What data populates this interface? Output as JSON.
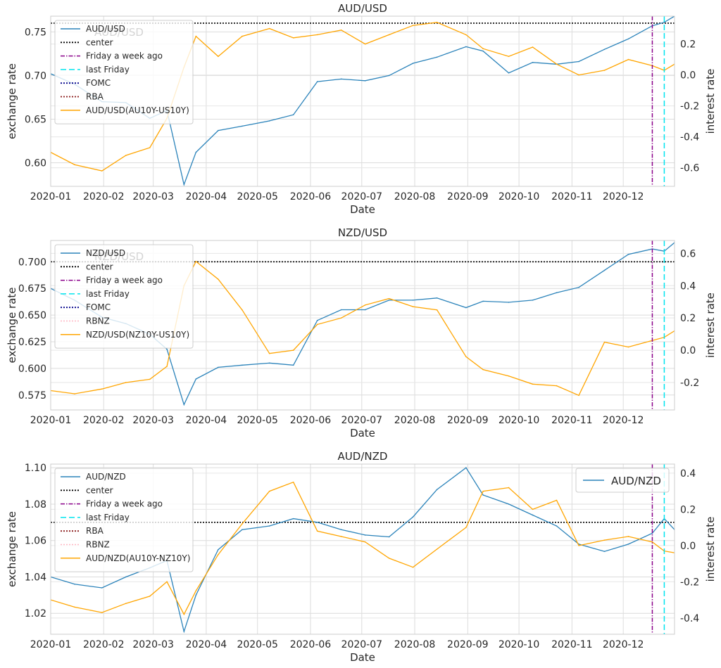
{
  "chart_data": [
    {
      "type": "line",
      "title": "AUD/USD",
      "xlabel": "Date",
      "ylabel": "exchange rate",
      "ylabel_right": "interest rate",
      "x_ticks": [
        "2020-01",
        "2020-02",
        "2020-03",
        "2020-04",
        "2020-05",
        "2020-06",
        "2020-07",
        "2020-08",
        "2020-09",
        "2020-10",
        "2020-11",
        "2020-12"
      ],
      "xlim": [
        "2020-01-01",
        "2020-12-31"
      ],
      "ylim": [
        0.573,
        0.768
      ],
      "yticks": [
        "0.60",
        "0.65",
        "0.70",
        "0.75"
      ],
      "ylim_right": [
        -0.72,
        0.38
      ],
      "yticks_right": [
        "-0.6",
        "-0.4",
        "-0.2",
        "0.0",
        "0.2"
      ],
      "grid": true,
      "legend_position": "upper-left",
      "legend_watermark": "AUD/USD",
      "legend": [
        "AUD/USD",
        "center",
        "Friday a week ago",
        "last Friday",
        "FOMC",
        "RBA",
        "AUD/USD(AU10Y-US10Y)"
      ],
      "center_value": 0.76,
      "friday_week_ago": "2020-12-18",
      "last_friday": "2020-12-25",
      "series": [
        {
          "name": "AUD/USD",
          "axis": "left",
          "color": "#2b83ba",
          "x": [
            "2020-01-01",
            "2020-01-15",
            "2020-01-31",
            "2020-02-14",
            "2020-02-28",
            "2020-03-09",
            "2020-03-19",
            "2020-03-26",
            "2020-04-08",
            "2020-04-22",
            "2020-05-08",
            "2020-05-22",
            "2020-06-05",
            "2020-06-19",
            "2020-07-03",
            "2020-07-17",
            "2020-07-31",
            "2020-08-14",
            "2020-08-31",
            "2020-09-10",
            "2020-09-25",
            "2020-10-09",
            "2020-10-23",
            "2020-11-05",
            "2020-11-20",
            "2020-12-04",
            "2020-12-18",
            "2020-12-25",
            "2020-12-31"
          ],
          "y": [
            0.702,
            0.69,
            0.67,
            0.669,
            0.651,
            0.66,
            0.575,
            0.612,
            0.637,
            0.642,
            0.648,
            0.655,
            0.693,
            0.696,
            0.694,
            0.7,
            0.714,
            0.721,
            0.733,
            0.728,
            0.703,
            0.715,
            0.713,
            0.716,
            0.73,
            0.742,
            0.757,
            0.761,
            0.768
          ]
        },
        {
          "name": "AUD/USD(AU10Y-US10Y)",
          "axis": "right",
          "color": "#ffa500",
          "x": [
            "2020-01-01",
            "2020-01-15",
            "2020-01-31",
            "2020-02-14",
            "2020-02-28",
            "2020-03-09",
            "2020-03-19",
            "2020-03-26",
            "2020-04-08",
            "2020-04-22",
            "2020-05-08",
            "2020-05-22",
            "2020-06-05",
            "2020-06-19",
            "2020-07-03",
            "2020-07-17",
            "2020-07-31",
            "2020-08-14",
            "2020-08-31",
            "2020-09-10",
            "2020-09-25",
            "2020-10-09",
            "2020-10-23",
            "2020-11-05",
            "2020-11-20",
            "2020-12-04",
            "2020-12-18",
            "2020-12-25",
            "2020-12-31"
          ],
          "y": [
            -0.5,
            -0.58,
            -0.62,
            -0.52,
            -0.47,
            -0.28,
            0.05,
            0.25,
            0.12,
            0.25,
            0.3,
            0.24,
            0.26,
            0.29,
            0.2,
            0.26,
            0.32,
            0.34,
            0.26,
            0.17,
            0.12,
            0.18,
            0.07,
            0.0,
            0.03,
            0.1,
            0.06,
            0.03,
            0.07
          ]
        }
      ]
    },
    {
      "type": "line",
      "title": "NZD/USD",
      "xlabel": "Date",
      "ylabel": "exchange rate",
      "ylabel_right": "interest rate",
      "x_ticks": [
        "2020-01",
        "2020-02",
        "2020-03",
        "2020-04",
        "2020-05",
        "2020-06",
        "2020-07",
        "2020-08",
        "2020-09",
        "2020-10",
        "2020-11",
        "2020-12"
      ],
      "xlim": [
        "2020-01-01",
        "2020-12-31"
      ],
      "ylim": [
        0.561,
        0.72
      ],
      "yticks": [
        "0.575",
        "0.600",
        "0.625",
        "0.650",
        "0.675",
        "0.700"
      ],
      "ylim_right": [
        -0.37,
        0.68
      ],
      "yticks_right": [
        "-0.2",
        "0.0",
        "0.2",
        "0.4",
        "0.6"
      ],
      "grid": true,
      "legend_position": "upper-left",
      "legend_watermark": "NZD/USD",
      "legend": [
        "NZD/USD",
        "center",
        "Friday a week ago",
        "last Friday",
        "FOMC",
        "RBNZ",
        "NZD/USD(NZ10Y-US10Y)"
      ],
      "center_value": 0.7,
      "friday_week_ago": "2020-12-18",
      "last_friday": "2020-12-25",
      "series": [
        {
          "name": "NZD/USD",
          "axis": "left",
          "color": "#2b83ba",
          "x": [
            "2020-01-01",
            "2020-01-15",
            "2020-01-31",
            "2020-02-14",
            "2020-02-28",
            "2020-03-09",
            "2020-03-19",
            "2020-03-26",
            "2020-04-08",
            "2020-04-22",
            "2020-05-08",
            "2020-05-22",
            "2020-06-05",
            "2020-06-19",
            "2020-07-03",
            "2020-07-17",
            "2020-07-31",
            "2020-08-14",
            "2020-08-31",
            "2020-09-10",
            "2020-09-25",
            "2020-10-09",
            "2020-10-23",
            "2020-11-05",
            "2020-11-20",
            "2020-12-04",
            "2020-12-18",
            "2020-12-25",
            "2020-12-31"
          ],
          "y": [
            0.675,
            0.664,
            0.648,
            0.642,
            0.632,
            0.618,
            0.566,
            0.59,
            0.601,
            0.603,
            0.605,
            0.603,
            0.645,
            0.655,
            0.655,
            0.664,
            0.664,
            0.666,
            0.657,
            0.663,
            0.662,
            0.664,
            0.671,
            0.676,
            0.692,
            0.707,
            0.712,
            0.71,
            0.718
          ]
        },
        {
          "name": "NZD/USD(NZ10Y-US10Y)",
          "axis": "right",
          "color": "#ffa500",
          "x": [
            "2020-01-01",
            "2020-01-15",
            "2020-01-31",
            "2020-02-14",
            "2020-02-28",
            "2020-03-09",
            "2020-03-19",
            "2020-03-26",
            "2020-04-08",
            "2020-04-22",
            "2020-05-08",
            "2020-05-22",
            "2020-06-05",
            "2020-06-19",
            "2020-07-03",
            "2020-07-17",
            "2020-07-31",
            "2020-08-14",
            "2020-08-31",
            "2020-09-10",
            "2020-09-25",
            "2020-10-09",
            "2020-10-23",
            "2020-11-05",
            "2020-11-20",
            "2020-12-04",
            "2020-12-18",
            "2020-12-25",
            "2020-12-31"
          ],
          "y": [
            -0.25,
            -0.27,
            -0.24,
            -0.2,
            -0.18,
            -0.1,
            0.4,
            0.55,
            0.44,
            0.25,
            -0.02,
            0.0,
            0.16,
            0.2,
            0.28,
            0.32,
            0.27,
            0.25,
            -0.04,
            -0.12,
            -0.16,
            -0.21,
            -0.22,
            -0.28,
            0.05,
            0.02,
            0.06,
            0.08,
            0.12
          ]
        }
      ]
    },
    {
      "type": "line",
      "title": "AUD/NZD",
      "xlabel": "Date",
      "ylabel": "exchange rate",
      "ylabel_right": "interest rate",
      "x_ticks": [
        "2020-01",
        "2020-02",
        "2020-03",
        "2020-04",
        "2020-05",
        "2020-06",
        "2020-07",
        "2020-08",
        "2020-09",
        "2020-10",
        "2020-11",
        "2020-12"
      ],
      "xlim": [
        "2020-01-01",
        "2020-12-31"
      ],
      "ylim": [
        1.0085,
        1.102
      ],
      "yticks": [
        "1.02",
        "1.04",
        "1.06",
        "1.08",
        "1.10"
      ],
      "ylim_right": [
        -0.49,
        0.45
      ],
      "yticks_right": [
        "-0.4",
        "-0.2",
        "0.0",
        "0.2",
        "0.4"
      ],
      "grid": true,
      "legend_position": "upper-left",
      "second_legend": "AUD/NZD",
      "second_legend_position": "upper-right",
      "legend": [
        "AUD/NZD",
        "center",
        "Friday a week ago",
        "last Friday",
        "RBA",
        "RBNZ",
        "AUD/NZD(AU10Y-NZ10Y)"
      ],
      "center_value": 1.07,
      "friday_week_ago": "2020-12-18",
      "last_friday": "2020-12-25",
      "series": [
        {
          "name": "AUD/NZD",
          "axis": "left",
          "color": "#2b83ba",
          "x": [
            "2020-01-01",
            "2020-01-15",
            "2020-01-31",
            "2020-02-14",
            "2020-02-28",
            "2020-03-09",
            "2020-03-19",
            "2020-03-26",
            "2020-04-08",
            "2020-04-22",
            "2020-05-08",
            "2020-05-22",
            "2020-06-05",
            "2020-06-19",
            "2020-07-03",
            "2020-07-17",
            "2020-07-31",
            "2020-08-14",
            "2020-08-31",
            "2020-09-10",
            "2020-09-25",
            "2020-10-09",
            "2020-10-23",
            "2020-11-05",
            "2020-11-20",
            "2020-12-04",
            "2020-12-18",
            "2020-12-25",
            "2020-12-31"
          ],
          "y": [
            1.04,
            1.036,
            1.034,
            1.04,
            1.045,
            1.049,
            1.01,
            1.03,
            1.055,
            1.066,
            1.068,
            1.072,
            1.07,
            1.066,
            1.063,
            1.062,
            1.073,
            1.088,
            1.1,
            1.085,
            1.08,
            1.074,
            1.068,
            1.058,
            1.054,
            1.058,
            1.064,
            1.072,
            1.066
          ]
        },
        {
          "name": "AUD/NZD(AU10Y-NZ10Y)",
          "axis": "right",
          "color": "#ffa500",
          "x": [
            "2020-01-01",
            "2020-01-15",
            "2020-01-31",
            "2020-02-14",
            "2020-02-28",
            "2020-03-09",
            "2020-03-19",
            "2020-03-26",
            "2020-04-08",
            "2020-04-22",
            "2020-05-08",
            "2020-05-22",
            "2020-06-05",
            "2020-06-19",
            "2020-07-03",
            "2020-07-17",
            "2020-07-31",
            "2020-08-14",
            "2020-08-31",
            "2020-09-10",
            "2020-09-25",
            "2020-10-09",
            "2020-10-23",
            "2020-11-05",
            "2020-11-20",
            "2020-12-04",
            "2020-12-18",
            "2020-12-25",
            "2020-12-31"
          ],
          "y": [
            -0.3,
            -0.34,
            -0.37,
            -0.32,
            -0.28,
            -0.2,
            -0.38,
            -0.25,
            -0.05,
            0.12,
            0.3,
            0.35,
            0.08,
            0.05,
            0.02,
            -0.07,
            -0.12,
            -0.02,
            0.1,
            0.3,
            0.32,
            0.2,
            0.25,
            0.0,
            0.03,
            0.05,
            0.02,
            -0.03,
            -0.04
          ]
        }
      ]
    }
  ]
}
